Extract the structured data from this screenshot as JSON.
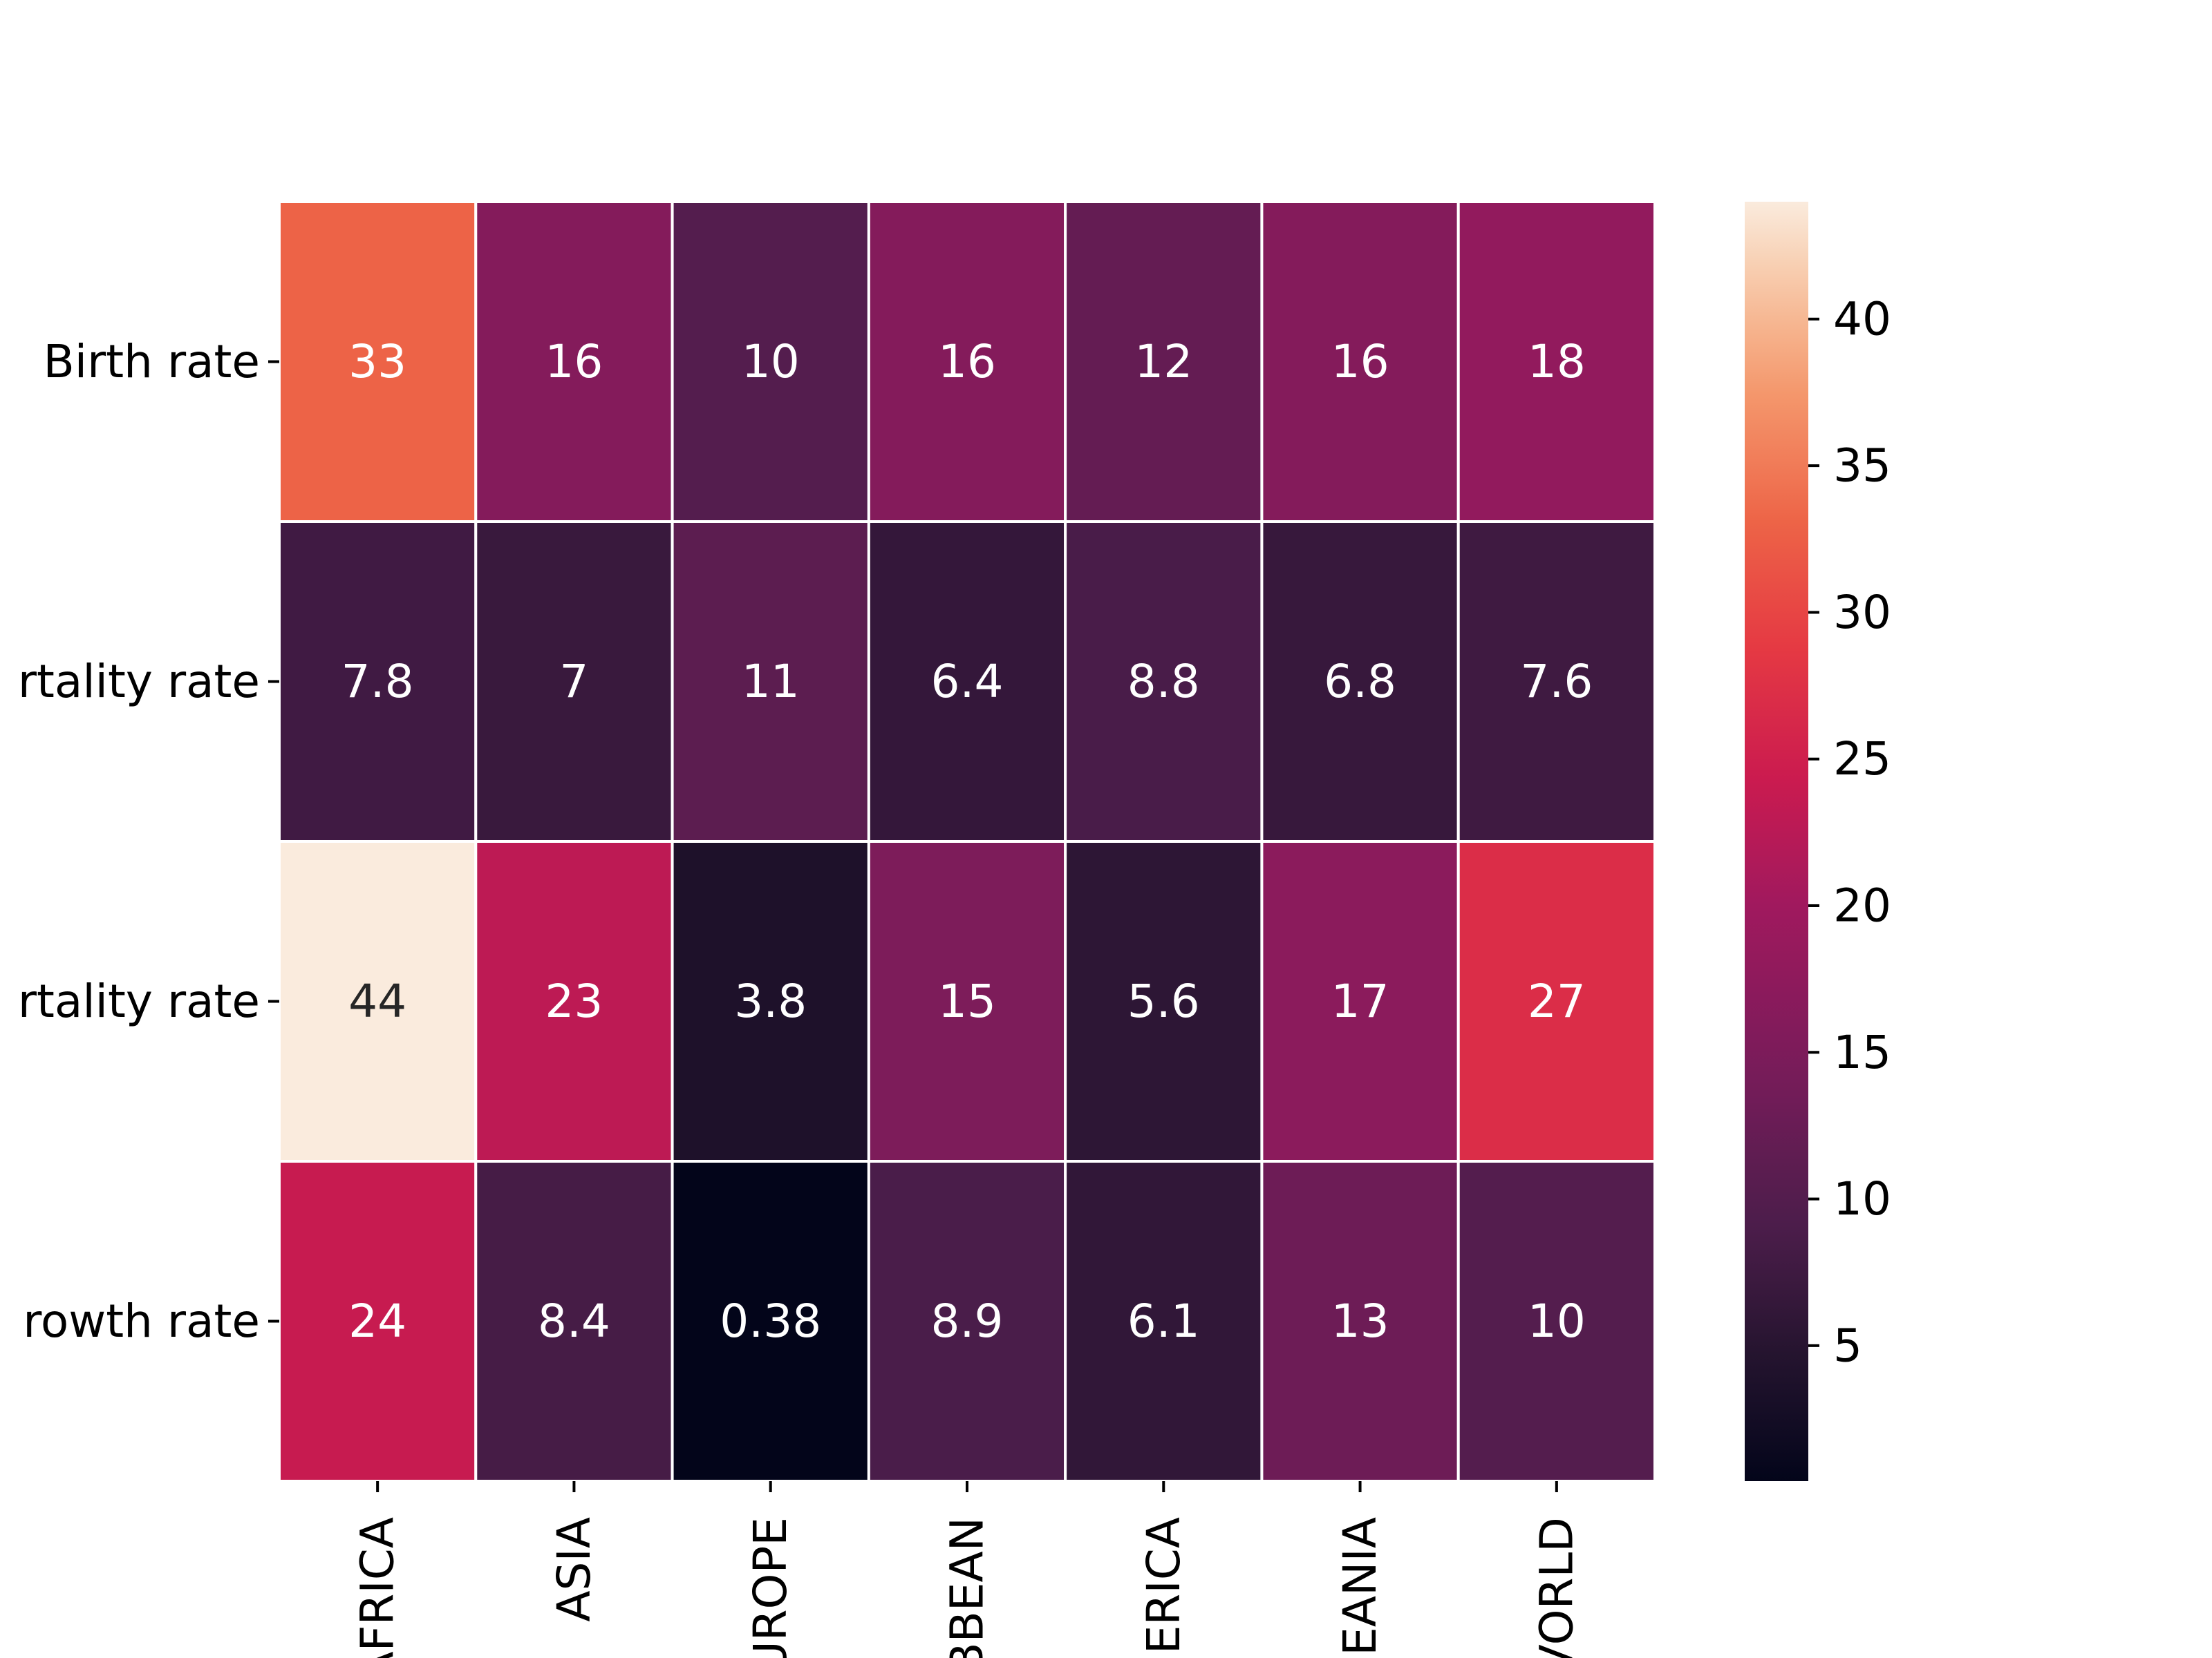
{
  "chart_data": {
    "type": "heatmap",
    "title": "",
    "xlabel": "",
    "ylabel": "",
    "rows": [
      "Birth rate",
      "Mortality rate",
      "Infant mortality rate",
      "Population growth rate"
    ],
    "row_tick_labels": [
      "Birth rate",
      "rtality rate",
      "rtality rate",
      "rowth rate"
    ],
    "columns": [
      "AFRICA",
      "ASIA",
      "EUROPE",
      "CARIBBEAN",
      "AMERICA",
      "OCEANIA",
      "WORLD"
    ],
    "column_tick_labels": [
      "AFRICA",
      "ASIA",
      "UROPE",
      "BBEAN",
      "ERICA",
      "EANIA",
      "VORLD"
    ],
    "values": [
      [
        33,
        16,
        10,
        16,
        12,
        16,
        18
      ],
      [
        7.8,
        7,
        11,
        6.4,
        8.8,
        6.8,
        7.6
      ],
      [
        44,
        23,
        3.8,
        15,
        5.6,
        17,
        27
      ],
      [
        24,
        8.4,
        0.38,
        8.9,
        6.1,
        13,
        10
      ]
    ],
    "value_labels": [
      [
        "33",
        "16",
        "10",
        "16",
        "12",
        "16",
        "18"
      ],
      [
        "7.8",
        "7",
        "11",
        "6.4",
        "8.8",
        "6.8",
        "7.6"
      ],
      [
        "44",
        "23",
        "3.8",
        "15",
        "5.6",
        "17",
        "27"
      ],
      [
        "24",
        "8.4",
        "0.38",
        "8.9",
        "6.1",
        "13",
        "10"
      ]
    ],
    "colorscale": "rocket",
    "vmin": 0.38,
    "vmax": 44,
    "colorbar": {
      "ticks": [
        5,
        10,
        15,
        20,
        25,
        30,
        35,
        40
      ],
      "tick_labels": [
        "5",
        "10",
        "15",
        "20",
        "25",
        "30",
        "35",
        "40"
      ],
      "placement": "right"
    },
    "grid": false,
    "cell_border_color": "#ffffff"
  }
}
